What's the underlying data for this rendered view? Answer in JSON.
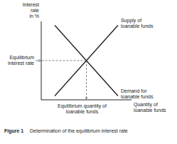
{
  "chart_data": {
    "type": "line",
    "title": "Figure 1",
    "subtitle": "Determination of the equilibrium interest rate",
    "x_label": "Quantity of\nloanable funds",
    "y_label": "Interest\nrate\nin %",
    "series": [
      {
        "name": "Supply of\nloanable funds",
        "x": [
          0.15,
          0.85
        ],
        "values": [
          0.05,
          0.95
        ]
      },
      {
        "name": "Demand for\nloanable funds",
        "x": [
          0.15,
          0.85
        ],
        "values": [
          0.95,
          0.05
        ]
      }
    ],
    "annotations": [
      {
        "text": "Equilibrium quantity of\nloanable funds",
        "x": 0.5,
        "y": 0.5
      },
      {
        "text": "Equilibrium\ninterest rate",
        "x": 0.5,
        "y": 0.5
      }
    ],
    "xlim": [
      0,
      1
    ],
    "ylim": [
      0,
      1
    ],
    "xticks": [],
    "yticks": [],
    "tick_labels": false,
    "grid": false
  }
}
